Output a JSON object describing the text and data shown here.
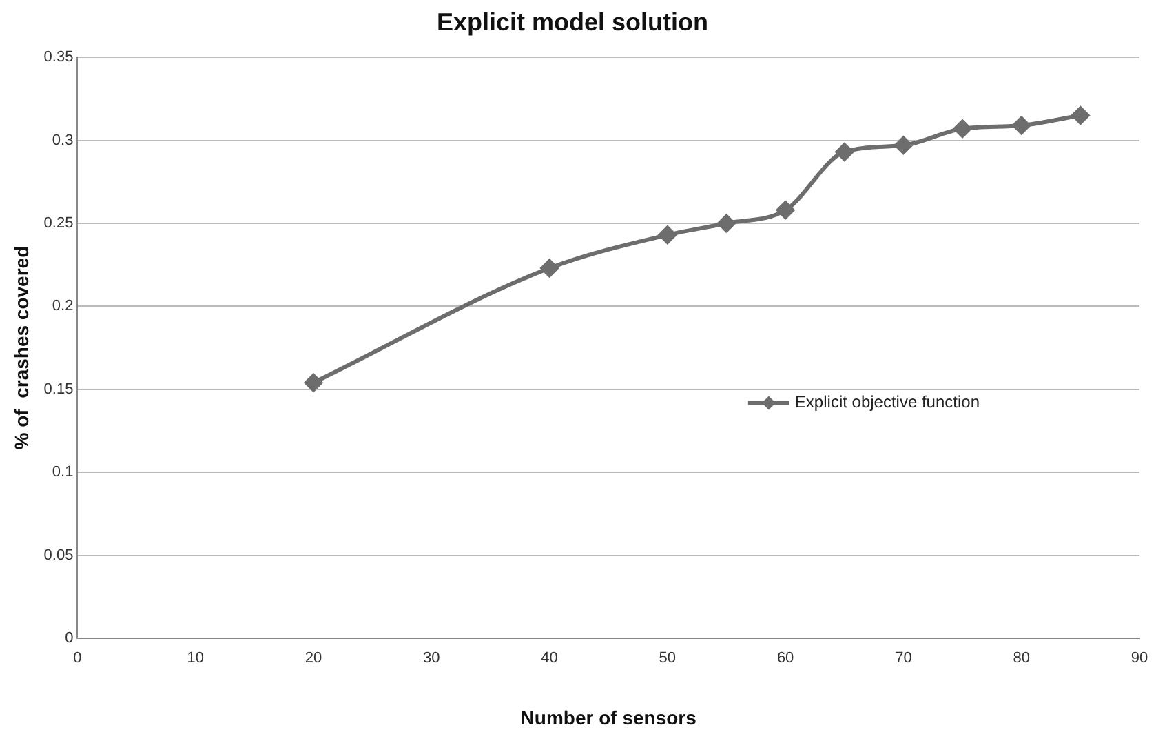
{
  "chart_data": {
    "type": "line",
    "title": "Explicit model solution",
    "xlabel": "Number of sensors",
    "ylabel": "% of  crashes covered",
    "x": [
      20,
      40,
      50,
      55,
      60,
      65,
      70,
      75,
      80,
      85
    ],
    "series": [
      {
        "name": "Explicit objective function",
        "color": "#6d6d6d",
        "values": [
          0.154,
          0.223,
          0.243,
          0.25,
          0.258,
          0.293,
          0.297,
          0.307,
          0.309,
          0.315
        ]
      }
    ],
    "xlim": [
      0,
      90
    ],
    "xticks": [
      0,
      10,
      20,
      30,
      40,
      50,
      60,
      70,
      80,
      90
    ],
    "ylim": [
      0,
      0.35
    ],
    "yticks": [
      0,
      0.05,
      0.1,
      0.15,
      0.2,
      0.25,
      0.3,
      0.35
    ],
    "grid": "y",
    "legend": "right",
    "marker": "diamond",
    "line_style": "solid"
  }
}
